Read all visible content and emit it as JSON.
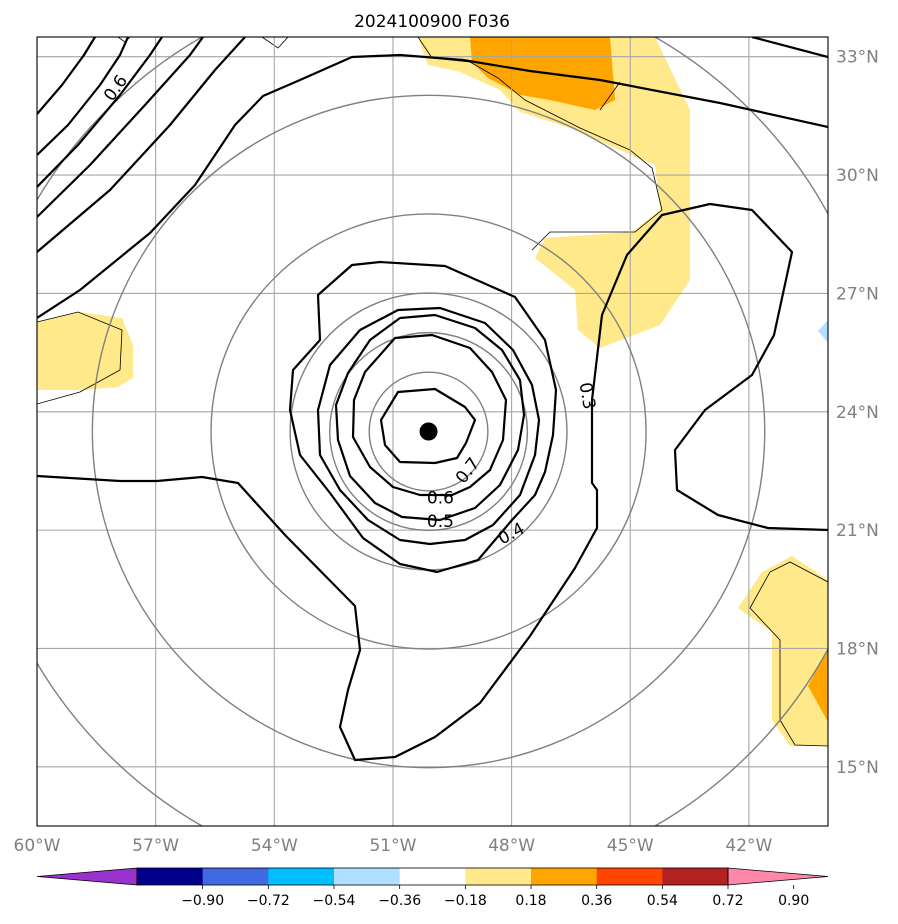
{
  "chart_data": {
    "type": "contour_map",
    "title": "2024100900 F036",
    "map": {
      "lon_range": [
        -60,
        -40
      ],
      "lat_range": [
        13.5,
        33.5
      ],
      "lon_ticks": [
        {
          "value": -60,
          "label": "60°W"
        },
        {
          "value": -57,
          "label": "57°W"
        },
        {
          "value": -54,
          "label": "54°W"
        },
        {
          "value": -51,
          "label": "51°W"
        },
        {
          "value": -48,
          "label": "48°W"
        },
        {
          "value": -45,
          "label": "45°W"
        },
        {
          "value": -42,
          "label": "42°W"
        }
      ],
      "lat_ticks": [
        {
          "value": 33,
          "label": "33°N"
        },
        {
          "value": 30,
          "label": "30°N"
        },
        {
          "value": 27,
          "label": "27°N"
        },
        {
          "value": 24,
          "label": "24°N"
        },
        {
          "value": 21,
          "label": "21°N"
        },
        {
          "value": 18,
          "label": "18°N"
        },
        {
          "value": 15,
          "label": "15°N"
        }
      ],
      "grid": true
    },
    "center": {
      "lon": -50.1,
      "lat": 23.5
    },
    "range_rings_deg": [
      1.5,
      2.5,
      3.5,
      5.5,
      8.5,
      11.5
    ],
    "contour_levels": [
      0.3,
      0.4,
      0.5,
      0.6,
      0.7
    ],
    "contour_labels": [
      {
        "text": "0.3",
        "lon": -46.1,
        "lat": 24.4
      },
      {
        "text": "0.4",
        "lon": -48.0,
        "lat": 20.9
      },
      {
        "text": "0.5",
        "lon": -49.8,
        "lat": 21.2
      },
      {
        "text": "0.6",
        "lon": -49.8,
        "lat": 21.8
      },
      {
        "text": "0.7",
        "lon": -49.1,
        "lat": 22.5
      },
      {
        "text": "0.6",
        "lon": -58.0,
        "lat": 32.2
      }
    ],
    "colorbar": {
      "ticks": [
        "−0.90",
        "−0.72",
        "−0.54",
        "−0.36",
        "−0.18",
        "0.18",
        "0.36",
        "0.54",
        "0.72",
        "0.90"
      ],
      "colors": [
        "#9932cc",
        "#00008b",
        "#4169e1",
        "#00bfff",
        "#b0e0ff",
        "#ffffff",
        "#ffe98a",
        "#ffa500",
        "#ff4500",
        "#b22222",
        "#ff88aa"
      ],
      "extend": "both"
    }
  }
}
